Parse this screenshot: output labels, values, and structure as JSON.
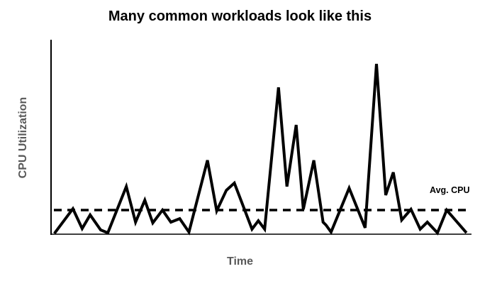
{
  "chart_data": {
    "type": "line",
    "title": "Many common workloads look like this",
    "xlabel": "Time",
    "ylabel": "CPU Utilization",
    "annotation_label": "Avg. CPU",
    "avg_value": 12.4,
    "xlim": [
      0,
      100
    ],
    "ylim": [
      0,
      100
    ],
    "grid": false,
    "axis_ticks": "none",
    "legend_position": "none",
    "colors": {
      "series_line": "#000000",
      "avg_line": "#000000",
      "axis": "#000000",
      "axis_label_text": "#595959",
      "title_text": "#000000",
      "background": "#ffffff"
    },
    "series": [
      {
        "name": "CPU utilization over time",
        "points": [
          [
            0.8,
            0.4
          ],
          [
            5.2,
            13.1
          ],
          [
            7.4,
            2.9
          ],
          [
            9.3,
            9.9
          ],
          [
            11.8,
            2.2
          ],
          [
            13.5,
            0.7
          ],
          [
            17.9,
            24.5
          ],
          [
            20.1,
            6.2
          ],
          [
            22.3,
            17.5
          ],
          [
            24.2,
            5.8
          ],
          [
            26.5,
            12.4
          ],
          [
            28.5,
            6.2
          ],
          [
            30.6,
            8.0
          ],
          [
            32.8,
            1.1
          ],
          [
            37.2,
            38.0
          ],
          [
            39.4,
            12.0
          ],
          [
            41.7,
            22.6
          ],
          [
            43.6,
            26.3
          ],
          [
            47.8,
            2.6
          ],
          [
            49.3,
            6.9
          ],
          [
            50.8,
            2.6
          ],
          [
            54.1,
            75.5
          ],
          [
            56.1,
            24.5
          ],
          [
            58.3,
            56.2
          ],
          [
            60.0,
            12.8
          ],
          [
            62.5,
            38.0
          ],
          [
            64.7,
            6.2
          ],
          [
            65.4,
            4.7
          ],
          [
            66.6,
            1.1
          ],
          [
            70.9,
            23.7
          ],
          [
            74.7,
            3.3
          ],
          [
            77.4,
            87.6
          ],
          [
            79.6,
            20.1
          ],
          [
            81.4,
            31.8
          ],
          [
            83.4,
            7.3
          ],
          [
            85.6,
            12.8
          ],
          [
            87.8,
            2.6
          ],
          [
            89.5,
            6.2
          ],
          [
            91.9,
            0.7
          ],
          [
            94.1,
            12.4
          ],
          [
            98.8,
            0.7
          ]
        ]
      }
    ]
  }
}
